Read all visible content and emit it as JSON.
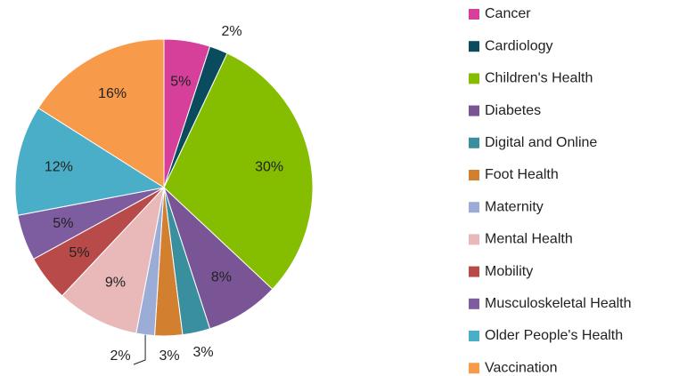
{
  "chart_data": {
    "type": "pie",
    "categories": [
      "Cancer",
      "Cardiology",
      "Children's Health",
      "Diabetes",
      "Digital and Online",
      "Foot Health",
      "Maternity",
      "Mental Health",
      "Mobility",
      "Musculoskeletal Health",
      "Older People's Health",
      "Vaccination"
    ],
    "values": [
      5,
      2,
      30,
      8,
      3,
      3,
      2,
      9,
      5,
      5,
      12,
      16
    ],
    "value_labels": [
      "5%",
      "2%",
      "30%",
      "8%",
      "3%",
      "3%",
      "2%",
      "9%",
      "5%",
      "5%",
      "12%",
      "16%"
    ],
    "colors": [
      "#d63f9a",
      "#0b4b5e",
      "#85bd00",
      "#7a5596",
      "#3a8f9f",
      "#d2802f",
      "#9badd6",
      "#e9b9b9",
      "#b94a4a",
      "#7d5ca0",
      "#4aaec8",
      "#f79a4a"
    ],
    "legend": "right"
  }
}
